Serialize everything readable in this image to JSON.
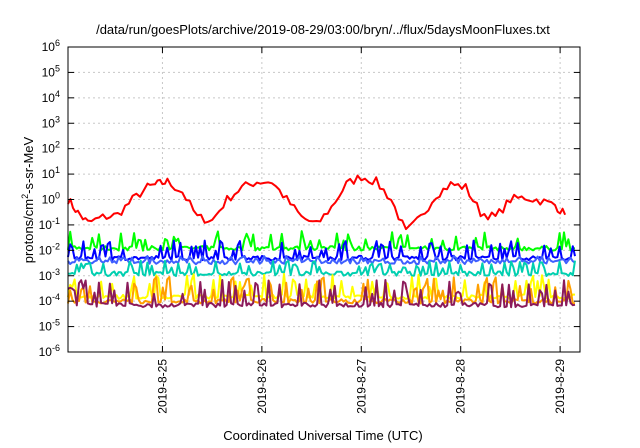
{
  "chart_data": {
    "type": "line",
    "title": "/data/run/goesPlots/archive/2019-08-29/03:00/bryn/../flux/5daysMoonFluxes.txt",
    "xlabel": "Coordinated Universal Time (UTC)",
    "ylabel": {
      "prefix": "protons/cm",
      "sup": "2",
      "suffix": "-s-sr-MeV"
    },
    "yscale": "log",
    "ylim": [
      1e-06,
      1000000.0
    ],
    "y_ticks": [
      {
        "base": "10",
        "exp": "-6"
      },
      {
        "base": "10",
        "exp": "-5"
      },
      {
        "base": "10",
        "exp": "-4"
      },
      {
        "base": "10",
        "exp": "-3"
      },
      {
        "base": "10",
        "exp": "-2"
      },
      {
        "base": "10",
        "exp": "-1"
      },
      {
        "base": "10",
        "exp": "0"
      },
      {
        "base": "10",
        "exp": "1"
      },
      {
        "base": "10",
        "exp": "2"
      },
      {
        "base": "10",
        "exp": "3"
      },
      {
        "base": "10",
        "exp": "4"
      },
      {
        "base": "10",
        "exp": "5"
      },
      {
        "base": "10",
        "exp": "6"
      }
    ],
    "xlim": [
      "2019-08-24 03:00",
      "2019-08-29 03:00"
    ],
    "x_ticks": [
      "2019-8-25",
      "2019-8-26",
      "2019-8-27",
      "2019-8-28",
      "2019-8-29"
    ],
    "grid": true,
    "series": [
      {
        "color": "#ff0000",
        "x": [
          0,
          0.1,
          0.2,
          0.35,
          0.5,
          0.65,
          0.8,
          0.9,
          1.0,
          1.15,
          1.3,
          1.45,
          1.6,
          1.75,
          1.9,
          2.05,
          2.2,
          2.35,
          2.5,
          2.65,
          2.8,
          2.95,
          3.1,
          3.25,
          3.4,
          3.55,
          3.7,
          3.85,
          4.0,
          4.15,
          4.3,
          4.45,
          4.6,
          4.75,
          4.9,
          5.0
        ],
        "y": [
          1,
          0.3,
          0.12,
          0.2,
          0.25,
          1,
          3,
          4,
          5,
          2,
          0.2,
          0.15,
          1,
          3,
          5,
          5,
          1,
          0.2,
          0.1,
          0.5,
          4,
          8,
          5,
          1,
          0.05,
          0.2,
          1.5,
          4,
          3,
          0.3,
          0.2,
          1.0,
          1.2,
          0.9,
          0.6,
          0.25
        ]
      },
      {
        "color": "#00ff00",
        "baseline": 0.012,
        "spike": 0.06
      },
      {
        "color": "#0000ff",
        "baseline": 0.005,
        "spike": 0.025
      },
      {
        "color": "#3f5fff",
        "baseline": 0.0035,
        "spike": 0.006
      },
      {
        "color": "#00cfb0",
        "baseline": 0.0012,
        "spike": 0.004
      },
      {
        "color": "#ffff00",
        "baseline": 0.00015,
        "spike": 0.0012
      },
      {
        "color": "#ff9f00",
        "baseline": 0.0001,
        "spike": 0.0009
      },
      {
        "color": "#8b1a5a",
        "baseline": 7e-05,
        "spike": 0.0007
      }
    ]
  }
}
